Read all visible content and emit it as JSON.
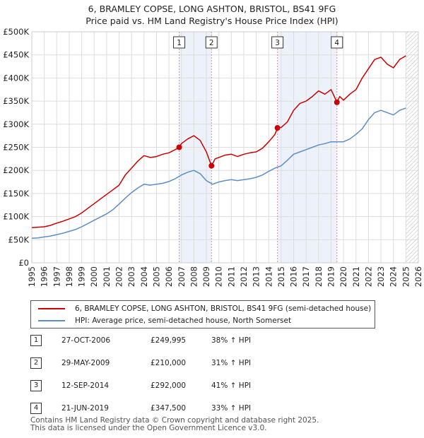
{
  "header": {
    "title_line1": "6, BRAMLEY COPSE, LONG ASHTON, BRISTOL, BS41 9FG",
    "title_line2": "Price paid vs. HM Land Registry's House Price Index (HPI)"
  },
  "colors": {
    "property_line": "#cc0000",
    "hpi_line": "#5b8ec9",
    "grid": "#dddddd",
    "marker_fill": "#cc0000",
    "vline": "#e09090",
    "shade": "#dce6f5"
  },
  "chart_data": {
    "type": "line",
    "title": "6, BRAMLEY COPSE, LONG ASHTON, BRISTOL, BS41 9FG",
    "subtitle": "Price paid vs. HM Land Registry's House Price Index (HPI)",
    "xlabel": "",
    "ylabel": "",
    "xlim": [
      1995,
      2026
    ],
    "ylim": [
      0,
      500000
    ],
    "grid": true,
    "yticks": [
      0,
      50000,
      100000,
      150000,
      200000,
      250000,
      300000,
      350000,
      400000,
      450000,
      500000
    ],
    "ytick_labels": [
      "£0",
      "£50K",
      "£100K",
      "£150K",
      "£200K",
      "£250K",
      "£300K",
      "£350K",
      "£400K",
      "£450K",
      "£500K"
    ],
    "xticks": [
      1995,
      1996,
      1997,
      1998,
      1999,
      2000,
      2001,
      2002,
      2003,
      2004,
      2005,
      2006,
      2007,
      2008,
      2009,
      2010,
      2011,
      2012,
      2013,
      2014,
      2015,
      2016,
      2017,
      2018,
      2019,
      2020,
      2021,
      2022,
      2023,
      2024,
      2025,
      2026
    ],
    "xtick_labels": [
      "1995",
      "1996",
      "1997",
      "1998",
      "1999",
      "2000",
      "2001",
      "2002",
      "2003",
      "2004",
      "2005",
      "2006",
      "2007",
      "2008",
      "2009",
      "2010",
      "2011",
      "2012",
      "2013",
      "2014",
      "2015",
      "2016",
      "2017",
      "2018",
      "2019",
      "2020",
      "2021",
      "2022",
      "2023",
      "2024",
      "2025",
      "2026"
    ],
    "future_hatch_from": 2025.0,
    "series": [
      {
        "name": "6, BRAMLEY COPSE, LONG ASHTON, BRISTOL, BS41 9FG (semi-detached house)",
        "x": [
          1995.0,
          1995.5,
          1996.0,
          1996.5,
          1997.0,
          1997.5,
          1998.0,
          1998.5,
          1999.0,
          1999.5,
          2000.0,
          2000.5,
          2001.0,
          2001.5,
          2002.0,
          2002.5,
          2003.0,
          2003.5,
          2004.0,
          2004.5,
          2005.0,
          2005.5,
          2006.0,
          2006.5,
          2006.82,
          2007.0,
          2007.5,
          2008.0,
          2008.5,
          2009.0,
          2009.41,
          2009.7,
          2010.0,
          2010.5,
          2011.0,
          2011.5,
          2012.0,
          2012.5,
          2013.0,
          2013.5,
          2014.0,
          2014.5,
          2014.7,
          2015.0,
          2015.5,
          2016.0,
          2016.5,
          2017.0,
          2017.5,
          2018.0,
          2018.5,
          2019.0,
          2019.47,
          2019.7,
          2020.0,
          2020.5,
          2021.0,
          2021.5,
          2022.0,
          2022.5,
          2023.0,
          2023.5,
          2024.0,
          2024.5,
          2025.0
        ],
        "values": [
          76000,
          77000,
          78000,
          81000,
          86000,
          90000,
          95000,
          100000,
          108000,
          118000,
          128000,
          138000,
          148000,
          158000,
          168000,
          190000,
          205000,
          220000,
          232000,
          228000,
          230000,
          235000,
          238000,
          245000,
          249995,
          258000,
          268000,
          275000,
          265000,
          240000,
          210000,
          225000,
          228000,
          233000,
          235000,
          230000,
          235000,
          238000,
          240000,
          248000,
          262000,
          278000,
          292000,
          293000,
          305000,
          330000,
          345000,
          350000,
          360000,
          372000,
          365000,
          375000,
          347500,
          360000,
          352000,
          365000,
          375000,
          400000,
          420000,
          440000,
          445000,
          430000,
          422000,
          440000,
          448000
        ]
      },
      {
        "name": "HPI: Average price, semi-detached house, North Somerset",
        "x": [
          1995.0,
          1995.5,
          1996.0,
          1996.5,
          1997.0,
          1997.5,
          1998.0,
          1998.5,
          1999.0,
          1999.5,
          2000.0,
          2000.5,
          2001.0,
          2001.5,
          2002.0,
          2002.5,
          2003.0,
          2003.5,
          2004.0,
          2004.5,
          2005.0,
          2005.5,
          2006.0,
          2006.5,
          2007.0,
          2007.5,
          2008.0,
          2008.5,
          2009.0,
          2009.5,
          2010.0,
          2010.5,
          2011.0,
          2011.5,
          2012.0,
          2012.5,
          2013.0,
          2013.5,
          2014.0,
          2014.5,
          2015.0,
          2015.5,
          2016.0,
          2016.5,
          2017.0,
          2017.5,
          2018.0,
          2018.5,
          2019.0,
          2019.5,
          2020.0,
          2020.5,
          2021.0,
          2021.5,
          2022.0,
          2022.5,
          2023.0,
          2023.5,
          2024.0,
          2024.5,
          2025.0
        ],
        "values": [
          53000,
          54000,
          56000,
          58000,
          61000,
          64000,
          68000,
          72000,
          78000,
          85000,
          92000,
          99000,
          106000,
          115000,
          127000,
          140000,
          152000,
          162000,
          170000,
          168000,
          170000,
          172000,
          176000,
          182000,
          190000,
          196000,
          200000,
          193000,
          178000,
          170000,
          175000,
          178000,
          180000,
          178000,
          180000,
          182000,
          185000,
          190000,
          198000,
          205000,
          210000,
          222000,
          235000,
          240000,
          245000,
          250000,
          255000,
          258000,
          262000,
          262000,
          262000,
          268000,
          278000,
          290000,
          310000,
          325000,
          330000,
          325000,
          320000,
          330000,
          335000
        ]
      }
    ],
    "markers": [
      {
        "label": "1",
        "x": 2006.82,
        "y": 249995
      },
      {
        "label": "2",
        "x": 2009.41,
        "y": 210000
      },
      {
        "label": "3",
        "x": 2014.7,
        "y": 292000
      },
      {
        "label": "4",
        "x": 2019.47,
        "y": 347500
      }
    ]
  },
  "legend": {
    "items": [
      {
        "label": "6, BRAMLEY COPSE, LONG ASHTON, BRISTOL, BS41 9FG (semi-detached house)"
      },
      {
        "label": "HPI: Average price, semi-detached house, North Somerset"
      }
    ]
  },
  "transactions": [
    {
      "num": "1",
      "date": "27-OCT-2006",
      "price": "£249,995",
      "hpi": "38% ↑ HPI"
    },
    {
      "num": "2",
      "date": "29-MAY-2009",
      "price": "£210,000",
      "hpi": "31% ↑ HPI"
    },
    {
      "num": "3",
      "date": "12-SEP-2014",
      "price": "£292,000",
      "hpi": "41% ↑ HPI"
    },
    {
      "num": "4",
      "date": "21-JUN-2019",
      "price": "£347,500",
      "hpi": "33% ↑ HPI"
    }
  ],
  "footer": {
    "line1": "Contains HM Land Registry data © Crown copyright and database right 2025.",
    "line2": "This data is licensed under the Open Government Licence v3.0."
  }
}
